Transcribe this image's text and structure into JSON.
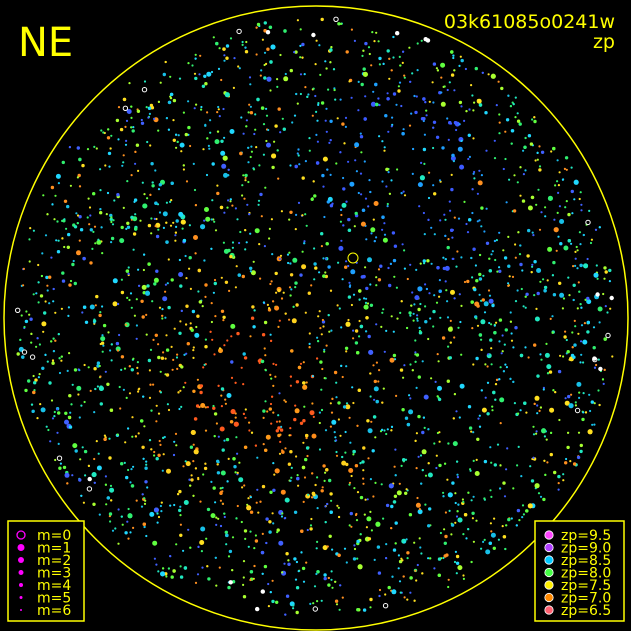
{
  "corner_label": "NE",
  "image_id": "03k61085o0241w",
  "map_type": "zp",
  "colors": {
    "frame": "#ffff00",
    "background": "#000000"
  },
  "chart_data": {
    "type": "scatter",
    "title": "03k61085o0241w",
    "subtitle": "zp",
    "magnitude_legend": {
      "color": "#ff00ff",
      "entries": [
        {
          "label": "m=0",
          "m": 0
        },
        {
          "label": "m=1",
          "m": 1
        },
        {
          "label": "m=2",
          "m": 2
        },
        {
          "label": "m=3",
          "m": 3
        },
        {
          "label": "m=4",
          "m": 4
        },
        {
          "label": "m=5",
          "m": 5
        },
        {
          "label": "m=6",
          "m": 6
        }
      ]
    },
    "zp_legend": [
      {
        "label": "zp=9.5",
        "zp": 9.5,
        "color": "#ff44ff"
      },
      {
        "label": "zp=9.0",
        "zp": 9.0,
        "color": "#b040ff"
      },
      {
        "label": "zp=8.5",
        "zp": 8.5,
        "color": "#00c8ff"
      },
      {
        "label": "zp=8.0",
        "zp": 8.0,
        "color": "#44ff44"
      },
      {
        "label": "zp=7.5",
        "zp": 7.5,
        "color": "#ffee00"
      },
      {
        "label": "zp=7.0",
        "zp": 7.0,
        "color": "#ff8800"
      },
      {
        "label": "zp=6.5",
        "zp": 6.5,
        "color": "#ff6070"
      }
    ]
  }
}
